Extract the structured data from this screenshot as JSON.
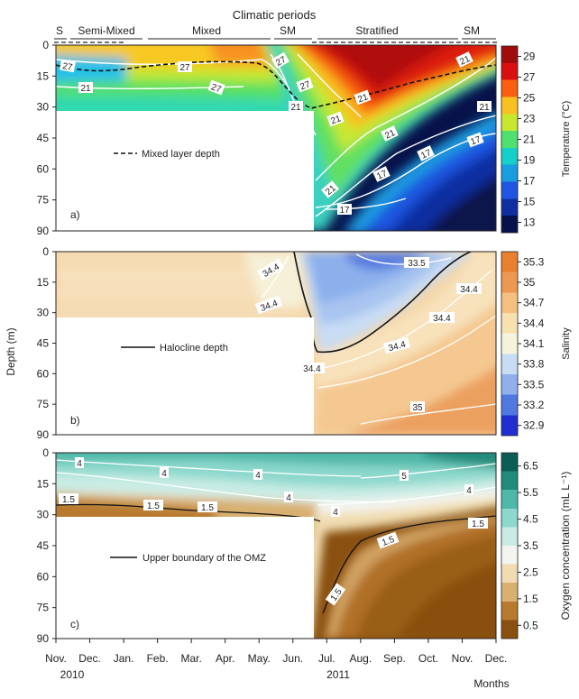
{
  "header": {
    "title": "Climatic periods",
    "periods": [
      "S",
      "Semi-Mixed",
      "Mixed",
      "SM",
      "Stratified",
      "SM"
    ]
  },
  "shared_axes": {
    "depth_label": "Depth (m)",
    "depth_ticks": [
      0,
      15,
      30,
      45,
      60,
      75,
      90
    ],
    "months": [
      "Nov.",
      "Dec.",
      "Jan.",
      "Feb.",
      "Mar.",
      "Apr.",
      "May.",
      "Jun.",
      "Jul.",
      "Aug.",
      "Sep.",
      "Oct.",
      "Nov.",
      "Dec."
    ],
    "years": [
      "2010",
      "2011"
    ],
    "months_label": "Months"
  },
  "chart_data": [
    {
      "type": "heatmap",
      "panel": "a)",
      "variable": "Temperature (°C)",
      "colorbar_ticks": [
        13,
        15,
        17,
        19,
        21,
        23,
        25,
        27,
        29
      ],
      "colorbar_colors": [
        "#08124a",
        "#0f2fa0",
        "#1f55e0",
        "#1a9ce0",
        "#14d0c8",
        "#50e070",
        "#c8e830",
        "#f8c020",
        "#f86010",
        "#d81010",
        "#a00c0c"
      ],
      "legend": "Mixed layer depth",
      "contour_labels": [
        "27",
        "27",
        "27",
        "27",
        "27",
        "21",
        "21",
        "21",
        "21",
        "21",
        "21",
        "21",
        "17",
        "17",
        "17",
        "17",
        "21"
      ]
    },
    {
      "type": "heatmap",
      "panel": "b)",
      "variable": "Salinity",
      "colorbar_ticks": [
        32.9,
        33.2,
        33.5,
        33.8,
        34.1,
        34.4,
        34.7,
        35,
        35.3
      ],
      "colorbar_colors": [
        "#2030d0",
        "#5078e0",
        "#90b0ec",
        "#c8dcf4",
        "#f4f4dc",
        "#f8e0b0",
        "#f4c080",
        "#ec9850",
        "#e88030"
      ],
      "legend": "Halocline depth",
      "contour_labels": [
        "33.5",
        "34.4",
        "34.4",
        "34.4",
        "34.4",
        "34.4",
        "34.4",
        "35"
      ]
    },
    {
      "type": "heatmap",
      "panel": "c)",
      "variable": "Oxygen concentration (mL L⁻¹)",
      "colorbar_ticks": [
        0.5,
        1.5,
        2.5,
        3.5,
        4.5,
        5.5,
        6.5
      ],
      "colorbar_colors": [
        "#8a5010",
        "#b87a2e",
        "#d8b070",
        "#f0dcb0",
        "#f4f4f0",
        "#c8ece4",
        "#8cd8cc",
        "#50b8a8",
        "#208a7c",
        "#0c5e54"
      ],
      "legend": "Upper boundary of the OMZ",
      "contour_labels": [
        "4",
        "4",
        "4",
        "4",
        "4",
        "5",
        "4",
        "1.5",
        "1.5",
        "1.5",
        "1.5",
        "1.5",
        "1.5"
      ]
    }
  ]
}
